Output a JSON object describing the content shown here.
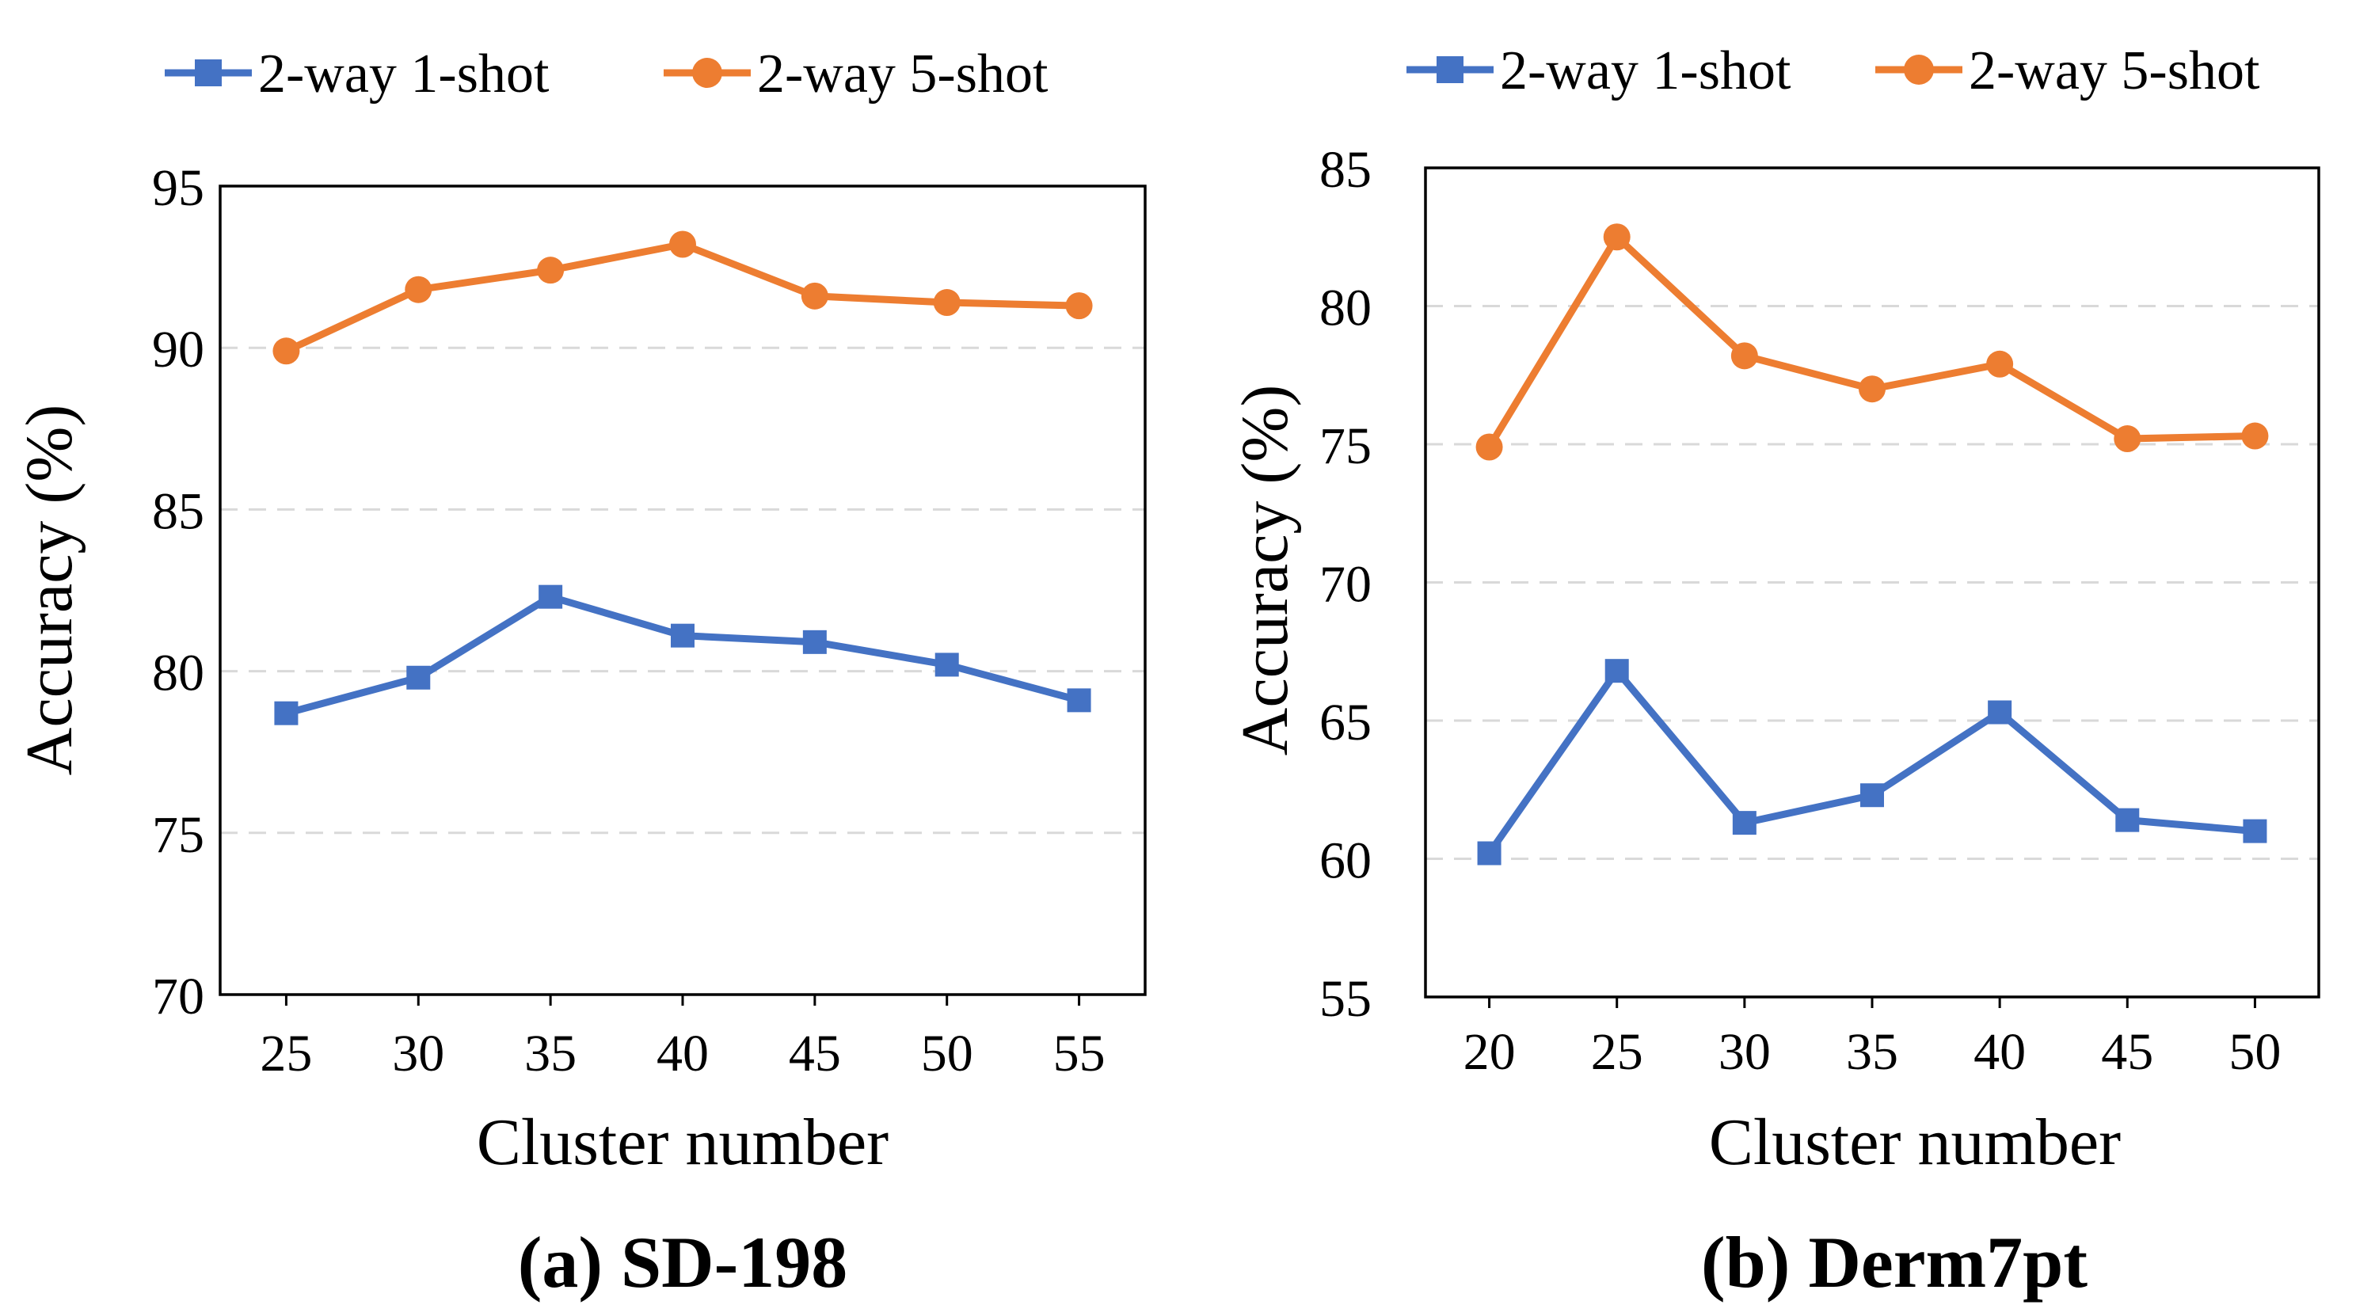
{
  "colors": {
    "series1": "#4472C4",
    "series2": "#ED7D31"
  },
  "chart_data": [
    {
      "type": "line",
      "caption": "(a) SD-198",
      "xlabel": "Cluster number",
      "ylabel": "Accuracy (%)",
      "x": [
        25,
        30,
        35,
        40,
        45,
        50,
        55
      ],
      "ylim": [
        70,
        95
      ],
      "yticks": [
        70,
        75,
        80,
        85,
        90,
        95
      ],
      "grid": true,
      "legend": "top",
      "series": [
        {
          "name": "2-way 1-shot",
          "marker": "square",
          "values": [
            78.7,
            79.8,
            82.3,
            81.1,
            80.9,
            80.2,
            79.1
          ]
        },
        {
          "name": "2-way 5-shot",
          "marker": "circle",
          "values": [
            89.9,
            91.8,
            92.4,
            93.2,
            91.6,
            91.4,
            91.3
          ]
        }
      ]
    },
    {
      "type": "line",
      "caption": "(b) Derm7pt",
      "xlabel": "Cluster number",
      "ylabel": "Accuracy (%)",
      "x": [
        20,
        25,
        30,
        35,
        40,
        45,
        50
      ],
      "ylim": [
        55,
        85
      ],
      "yticks": [
        55,
        60,
        65,
        70,
        75,
        80,
        85
      ],
      "grid": true,
      "legend": "top",
      "series": [
        {
          "name": "2-way 1-shot",
          "marker": "square",
          "values": [
            60.2,
            66.8,
            61.3,
            62.3,
            65.3,
            61.4,
            61.0
          ]
        },
        {
          "name": "2-way 5-shot",
          "marker": "circle",
          "values": [
            74.9,
            82.5,
            78.2,
            77.0,
            77.9,
            75.2,
            75.3
          ]
        }
      ]
    }
  ]
}
